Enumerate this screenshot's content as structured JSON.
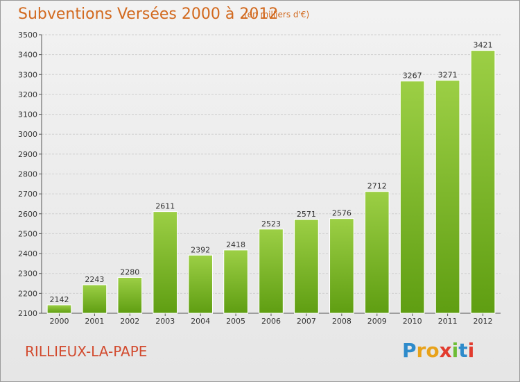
{
  "header": {
    "title": "Subventions Versées 2000 à 2012",
    "unit_note": "(en milliers d'€)"
  },
  "footer": {
    "commune": "RILLIEUX-LA-PAPE",
    "brand_letters": [
      "P",
      "r",
      "o",
      "x",
      "i",
      "t",
      "i"
    ],
    "brand_colors": [
      "#2e8bcb",
      "#e8a21a",
      "#e8a21a",
      "#e23b2e",
      "#6dbd35",
      "#2e8bcb",
      "#e23b2e"
    ]
  },
  "colors": {
    "bar_light": "#9ccf45",
    "bar_dark": "#5f9e12",
    "grid": "#cfcfcf",
    "title": "#d2691e"
  },
  "chart_data": {
    "type": "bar",
    "title": "Subventions Versées 2000 à 2012",
    "subtitle": "(en milliers d'€)",
    "categories": [
      "2000",
      "2001",
      "2002",
      "2003",
      "2004",
      "2005",
      "2006",
      "2007",
      "2008",
      "2009",
      "2010",
      "2011",
      "2012"
    ],
    "values": [
      2142,
      2243,
      2280,
      2611,
      2392,
      2418,
      2523,
      2571,
      2576,
      2712,
      3267,
      3271,
      3421
    ],
    "ylim": [
      2100,
      3500
    ],
    "yticks": [
      2100,
      2200,
      2300,
      2400,
      2500,
      2600,
      2700,
      2800,
      2900,
      3000,
      3100,
      3200,
      3300,
      3400,
      3500
    ],
    "grid": true,
    "data_labels": true
  }
}
